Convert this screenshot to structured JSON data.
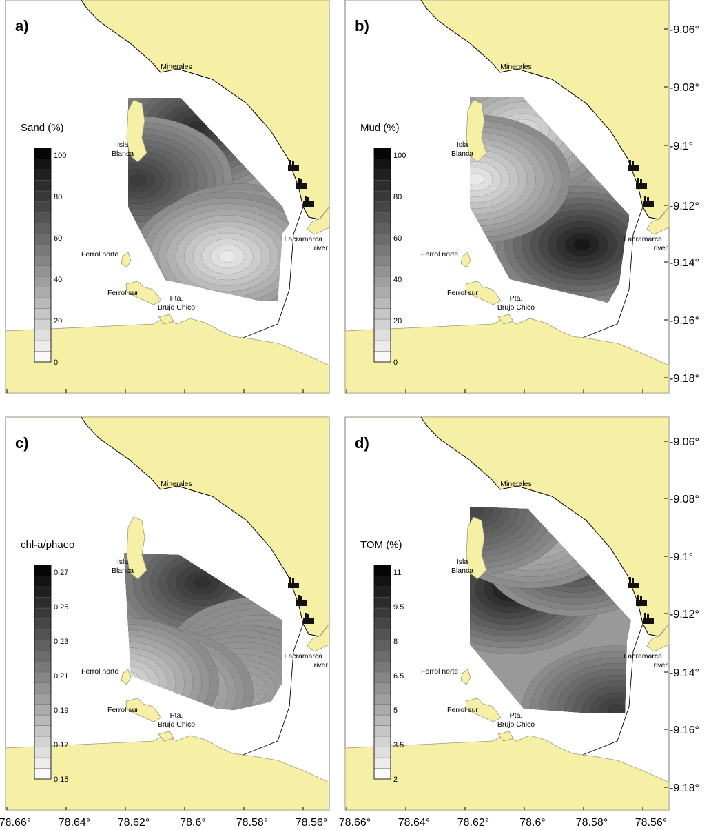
{
  "colors": {
    "land": "#f6f0a7",
    "land_edge": "#9a9a7e",
    "coast_line": "#000000",
    "sea": "#ffffff"
  },
  "panels": [
    {
      "id": "a",
      "letter": "a)",
      "variable_label": "Sand (%)",
      "colorbar_ticks": [
        "100",
        "80",
        "60",
        "40",
        "20",
        "0"
      ],
      "high_zones": [
        "north-central",
        "west"
      ],
      "low_zones": [
        "south-east"
      ]
    },
    {
      "id": "b",
      "letter": "b)",
      "variable_label": "Mud (%)",
      "colorbar_ticks": [
        "100",
        "80",
        "60",
        "40",
        "20",
        "0"
      ],
      "high_zones": [
        "south-east"
      ],
      "low_zones": [
        "north-central",
        "west"
      ]
    },
    {
      "id": "c",
      "letter": "c)",
      "variable_label": "chl-a/phaeo",
      "colorbar_ticks": [
        "0.27",
        "0.25",
        "0.23",
        "0.21",
        "0.19",
        "0.17",
        "0.15"
      ],
      "high_zones": [
        "north-west"
      ],
      "low_zones": [
        "north",
        "south-west"
      ]
    },
    {
      "id": "d",
      "letter": "d)",
      "variable_label": "TOM (%)",
      "colorbar_ticks": [
        "11",
        "9.5",
        "8",
        "6.5",
        "5",
        "3.5",
        "2"
      ],
      "high_zones": [
        "south-west",
        "east-central"
      ],
      "low_zones": [
        "north-east"
      ]
    }
  ],
  "places": {
    "minerales": "Minerales",
    "isla_blanca_1": "Isla",
    "isla_blanca_2": "Blanca",
    "ferrol_norte": "Ferrol norte",
    "ferrol_sur": "Ferrol sur",
    "pta_1": "Pta.",
    "pta_2": "Brujo Chico",
    "lacramarca_1": "Lacramarca",
    "lacramarca_2": "river"
  },
  "latitude_ticks": [
    "-9.06°",
    "-9.08°",
    "-9.1°",
    "-9.12°",
    "-9.14°",
    "-9.16°",
    "-9.18°"
  ],
  "longitude_ticks": [
    "78.66°",
    "78.64°",
    "78.62°",
    "78.6°",
    "78.58°",
    "78.56°"
  ]
}
